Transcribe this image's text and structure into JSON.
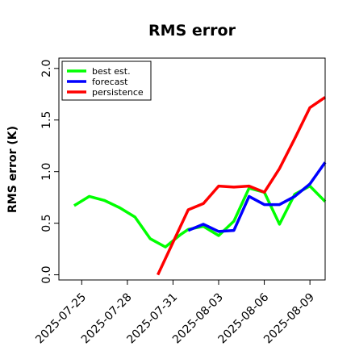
{
  "chart_data": {
    "type": "line",
    "title": "RMS error",
    "ylabel": "RMS error (K)",
    "xlabel": "",
    "ylim": [
      -0.05,
      2.1
    ],
    "xlim": [
      "2025-07-23T12:00",
      "2025-08-10T00:00"
    ],
    "yticks": [
      {
        "value": 0.0,
        "label": "0.0"
      },
      {
        "value": 0.5,
        "label": "0.5"
      },
      {
        "value": 1.0,
        "label": "1.0"
      },
      {
        "value": 1.5,
        "label": "1.5"
      },
      {
        "value": 2.0,
        "label": "2.0"
      }
    ],
    "xticks": [
      {
        "date": "2025-07-25",
        "label": "2025-07-25",
        "color": "#000000"
      },
      {
        "date": "2025-07-28",
        "label": "2025-07-28",
        "color": "#000000"
      },
      {
        "date": "2025-07-31",
        "label": "2025-07-31",
        "color": "#228B22"
      },
      {
        "date": "2025-08-03",
        "label": "2025-08-03",
        "color": "#000000"
      },
      {
        "date": "2025-08-06",
        "label": "2025-08-06",
        "color": "#000000"
      },
      {
        "date": "2025-08-09",
        "label": "2025-08-09",
        "color": "#000000"
      }
    ],
    "legend_position": "top-left",
    "grid": false,
    "series": [
      {
        "name": "best est.",
        "color": "#00ff00",
        "points": [
          {
            "x": "2025-07-24T12:00",
            "y": 0.67
          },
          {
            "x": "2025-07-25T12:00",
            "y": 0.76
          },
          {
            "x": "2025-07-26T12:00",
            "y": 0.72
          },
          {
            "x": "2025-07-27T12:00",
            "y": 0.65
          },
          {
            "x": "2025-07-28T12:00",
            "y": 0.56
          },
          {
            "x": "2025-07-29T12:00",
            "y": 0.35
          },
          {
            "x": "2025-07-30T12:00",
            "y": 0.27
          },
          {
            "x": "2025-07-31T12:00",
            "y": 0.39
          },
          {
            "x": "2025-08-01T00:00",
            "y": 0.44
          },
          {
            "x": "2025-08-02T00:00",
            "y": 0.47
          },
          {
            "x": "2025-08-03T00:00",
            "y": 0.38
          },
          {
            "x": "2025-08-04T00:00",
            "y": 0.52
          },
          {
            "x": "2025-08-05T00:00",
            "y": 0.84
          },
          {
            "x": "2025-08-06T00:00",
            "y": 0.8
          },
          {
            "x": "2025-08-07T00:00",
            "y": 0.49
          },
          {
            "x": "2025-08-08T00:00",
            "y": 0.78
          },
          {
            "x": "2025-08-09T00:00",
            "y": 0.86
          },
          {
            "x": "2025-08-10T00:00",
            "y": 0.71
          }
        ]
      },
      {
        "name": "forecast",
        "color": "#0000ff",
        "points": [
          {
            "x": "2025-08-01T00:00",
            "y": 0.43
          },
          {
            "x": "2025-08-02T00:00",
            "y": 0.49
          },
          {
            "x": "2025-08-03T00:00",
            "y": 0.42
          },
          {
            "x": "2025-08-04T00:00",
            "y": 0.43
          },
          {
            "x": "2025-08-05T00:00",
            "y": 0.76
          },
          {
            "x": "2025-08-06T00:00",
            "y": 0.68
          },
          {
            "x": "2025-08-07T00:00",
            "y": 0.68
          },
          {
            "x": "2025-08-08T00:00",
            "y": 0.76
          },
          {
            "x": "2025-08-09T00:00",
            "y": 0.88
          },
          {
            "x": "2025-08-10T00:00",
            "y": 1.09
          }
        ]
      },
      {
        "name": "persistence",
        "color": "#ff0000",
        "points": [
          {
            "x": "2025-07-30T00:00",
            "y": 0.0
          },
          {
            "x": "2025-08-01T00:00",
            "y": 0.63
          },
          {
            "x": "2025-08-02T00:00",
            "y": 0.69
          },
          {
            "x": "2025-08-03T00:00",
            "y": 0.86
          },
          {
            "x": "2025-08-04T00:00",
            "y": 0.85
          },
          {
            "x": "2025-08-05T00:00",
            "y": 0.86
          },
          {
            "x": "2025-08-06T00:00",
            "y": 0.8
          },
          {
            "x": "2025-08-07T00:00",
            "y": 1.03
          },
          {
            "x": "2025-08-08T00:00",
            "y": 1.32
          },
          {
            "x": "2025-08-09T00:00",
            "y": 1.62
          },
          {
            "x": "2025-08-10T00:00",
            "y": 1.72
          }
        ]
      }
    ]
  }
}
